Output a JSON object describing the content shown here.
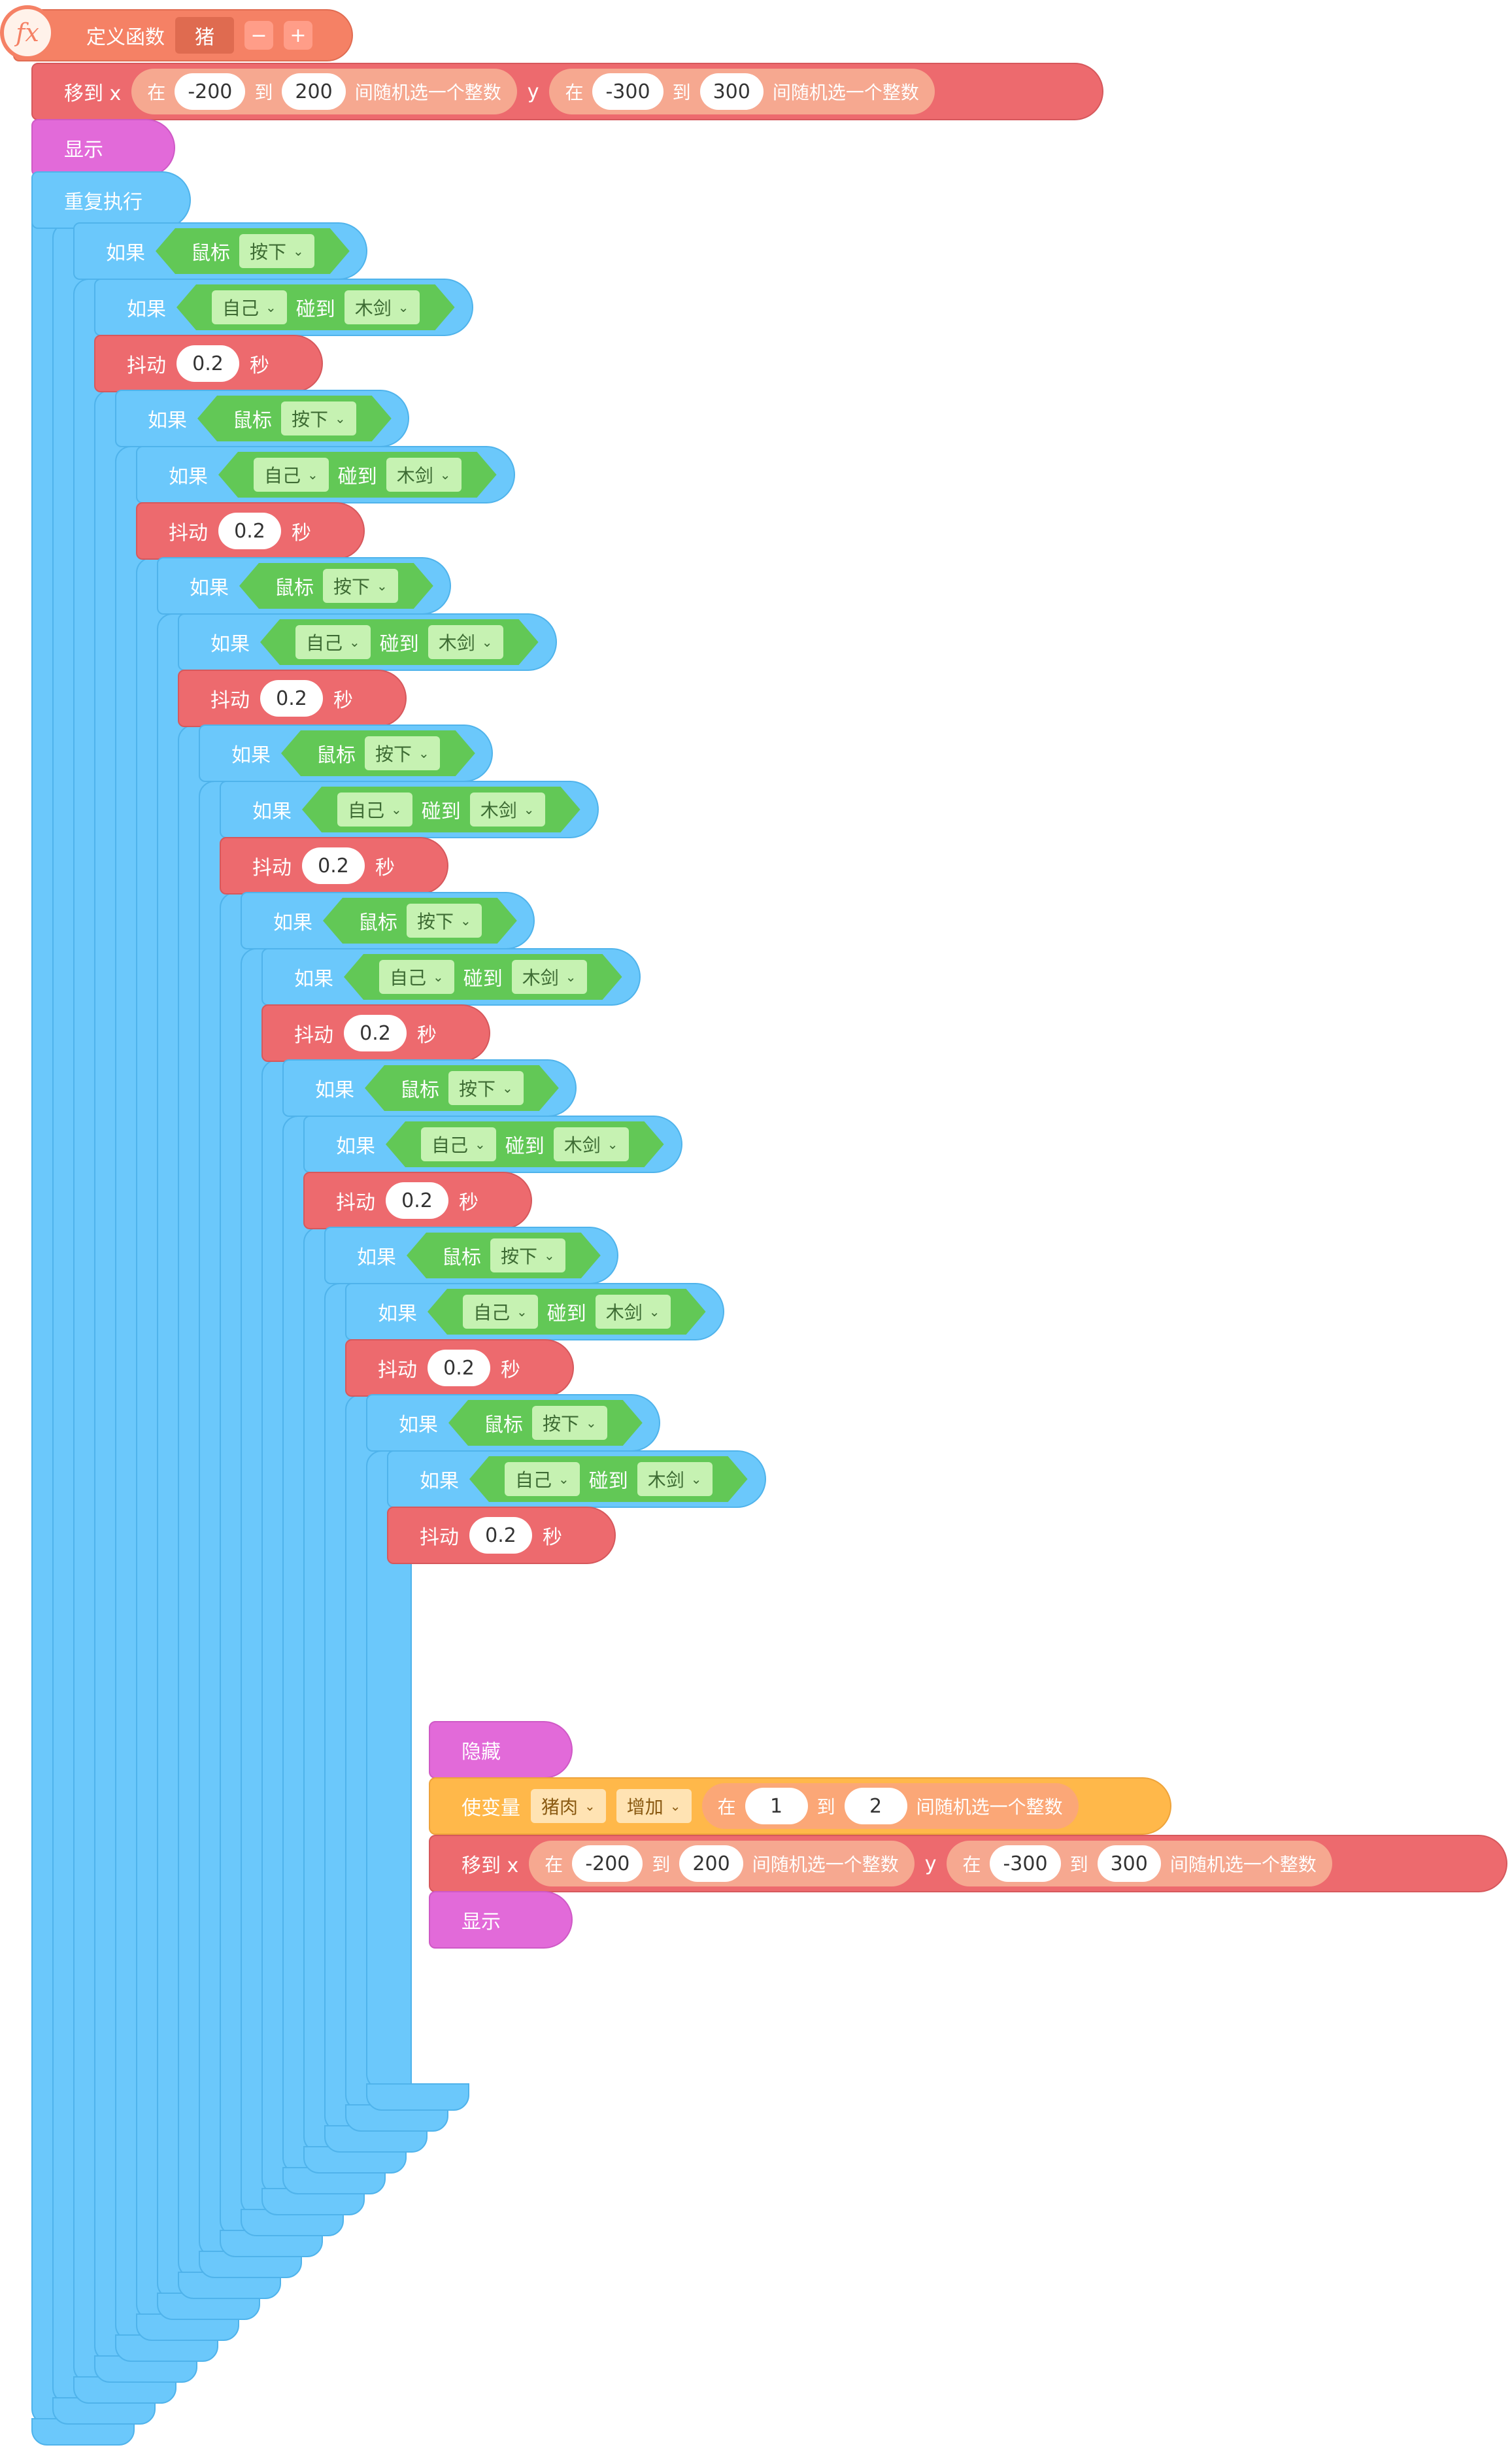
{
  "define": {
    "fx_icon_text": "fx",
    "label": "定义函数",
    "name": "猪",
    "minus": "−",
    "plus": "+"
  },
  "move_block": {
    "label": "移到 x",
    "x_in": "在",
    "x_from": "-200",
    "x_to_label": "到",
    "x_to": "200",
    "x_tail": "间随机选一个整数",
    "y_label": "y",
    "y_in": "在",
    "y_from": "-300",
    "y_to_label": "到",
    "y_to": "300",
    "y_tail": "间随机选一个整数"
  },
  "show_label": "显示",
  "repeat_label": "重复执行",
  "if_label": "如果",
  "mouse": {
    "sensor": "鼠标",
    "state": "按下"
  },
  "touch": {
    "subject": "自己",
    "verb": "碰到",
    "target": "木剑"
  },
  "shake": {
    "label": "抖动",
    "value": "0.2",
    "unit": "秒"
  },
  "hide_label": "隐藏",
  "var_change": {
    "label": "使变量",
    "variable": "猪肉",
    "op": "增加",
    "in": "在",
    "from": "1",
    "to_label": "到",
    "to": "2",
    "tail": "间随机选一个整数"
  },
  "levels": 8,
  "colors": {
    "blue": "#6bc8fb",
    "red": "#ed6a6e",
    "green": "#62c856",
    "pink": "#e26ad9",
    "orange": "#ffb84a",
    "salmon": "#f58165"
  }
}
